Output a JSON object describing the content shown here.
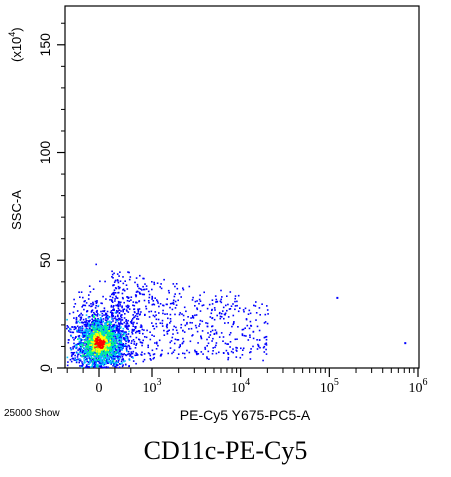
{
  "chart_data": {
    "type": "scatter",
    "subtype": "flow-cytometry-density-dot-plot",
    "caption": "CD11c-PE-Cy5",
    "xlabel": "PE-Cy5 Y675-PC5-A",
    "ylabel": "SSC-A",
    "y_multiplier": {
      "base": "(x10",
      "exp": "4",
      "close": ")"
    },
    "event_count": "25000 Show",
    "x_scale": "logicle",
    "x_ticks": [
      {
        "value": 0,
        "label": "0",
        "exp": ""
      },
      {
        "value": 1000,
        "label": "10",
        "exp": "3"
      },
      {
        "value": 10000,
        "label": "10",
        "exp": "4"
      },
      {
        "value": 100000,
        "label": "10",
        "exp": "5"
      },
      {
        "value": 1000000,
        "label": "10",
        "exp": "6"
      }
    ],
    "y_ticks": [
      0,
      50,
      100,
      150
    ],
    "ylim": [
      0,
      168
    ],
    "grid": false,
    "legend": "none",
    "density_colors": [
      "#0000ff",
      "#00c0ff",
      "#00ff80",
      "#ffff00",
      "#ff0000"
    ],
    "population": {
      "center_x": 0,
      "center_y": 12,
      "main_spread_y": 6,
      "tail_to_x": 20000,
      "tail_y_range": [
        5,
        45
      ],
      "outliers": [
        {
          "x": 120000,
          "y": 33
        },
        {
          "x": 700000,
          "y": 12
        }
      ]
    }
  }
}
